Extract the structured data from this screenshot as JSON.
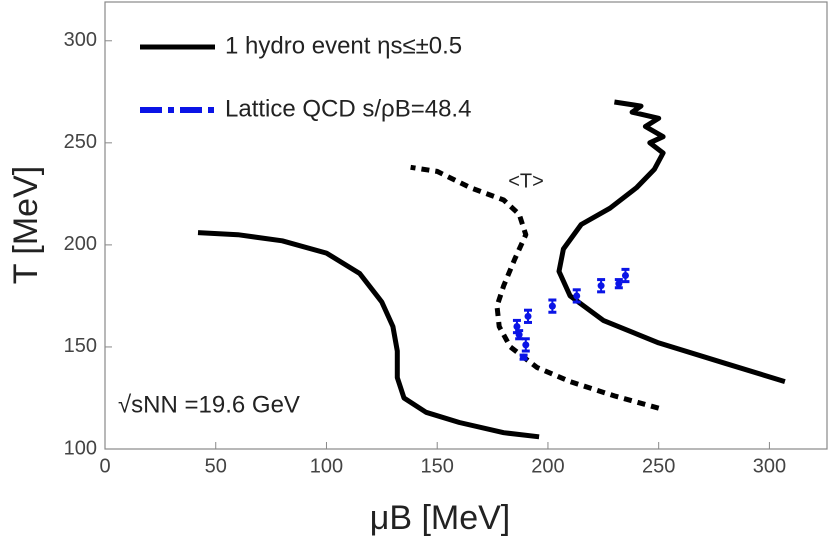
{
  "chart_data": {
    "type": "line",
    "x_label": "μB [MeV]",
    "y_label": "T [MeV]",
    "xlim": [
      0,
      326
    ],
    "ylim": [
      100,
      319
    ],
    "xticks": [
      0,
      50,
      100,
      150,
      200,
      250,
      300
    ],
    "yticks": [
      100,
      150,
      200,
      250,
      300
    ],
    "annotations": [
      "<T>",
      "√sNN =19.6 GeV"
    ],
    "series": [
      {
        "name": "1 hydro event ηs≤±0.5",
        "color": "#000000",
        "style": "solid",
        "x": [
          42,
          60,
          80,
          100,
          115,
          125,
          130,
          132,
          132,
          135,
          145,
          160,
          180,
          196,
          null,
          307,
          280,
          250,
          225,
          210,
          205,
          207,
          215,
          228,
          240,
          248,
          252,
          246,
          252,
          244,
          250,
          238,
          242,
          230
        ],
        "values": [
          206,
          205,
          202,
          196,
          186,
          172,
          160,
          148,
          135,
          125,
          118,
          113,
          108,
          106,
          null,
          133,
          142,
          152,
          163,
          175,
          187,
          198,
          210,
          218,
          228,
          237,
          245,
          250,
          253,
          258,
          262,
          265,
          268,
          270
        ]
      },
      {
        "name": null,
        "color": "#000000",
        "style": "dashed",
        "x": [
          250,
          230,
          210,
          195,
          183,
          178,
          177,
          180,
          185,
          190,
          187,
          180,
          165,
          150,
          138
        ],
        "values": [
          120,
          126,
          133,
          140,
          150,
          160,
          170,
          180,
          193,
          205,
          215,
          222,
          228,
          236,
          238
        ]
      },
      {
        "name": "Lattice QCD s/ρB=48.4",
        "color": "#0a14e6",
        "style": "error-points",
        "x": [
          186,
          187,
          190,
          189,
          191,
          202,
          213,
          224,
          232,
          235
        ],
        "values": [
          160,
          156,
          151,
          145,
          165,
          170,
          175,
          180,
          181,
          185
        ],
        "errors": [
          3,
          2,
          3,
          1,
          3,
          3,
          3,
          3,
          2,
          3
        ]
      }
    ]
  }
}
